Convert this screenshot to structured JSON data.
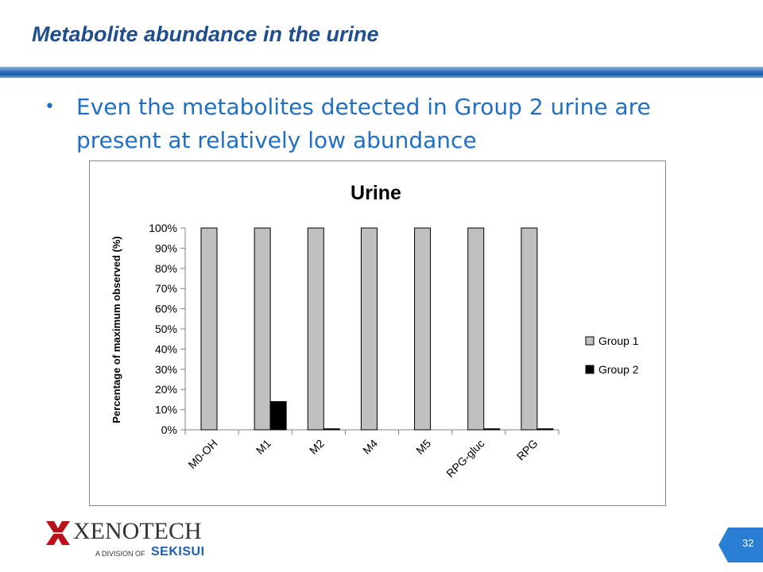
{
  "slide": {
    "title": "Metabolite abundance in the urine",
    "bullet": "Even the metabolites detected in Group 2 urine are present at relatively low abundance",
    "page_number": "32",
    "colors": {
      "title": "#1F4E8C",
      "bullet": "#1F6FC5",
      "bar_group1": "#C0C0C0",
      "bar_group2": "#000000"
    }
  },
  "logo": {
    "name": "XENOTECH",
    "division_text": "A DIVISION OF",
    "parent": "SEKISUI",
    "icon": "xenotech-x-mark"
  },
  "chart_data": {
    "type": "bar",
    "title": "Urine",
    "xlabel": "",
    "ylabel": "Percentage of maximum observed (%)",
    "categories": [
      "M0-OH",
      "M1",
      "M2",
      "M4",
      "M5",
      "RPG-gluc",
      "RPG"
    ],
    "series": [
      {
        "name": "Group 1",
        "values": [
          100,
          100,
          100,
          100,
          100,
          100,
          100
        ]
      },
      {
        "name": "Group 2",
        "values": [
          0,
          14,
          0.5,
          0,
          0,
          0.5,
          0.5
        ]
      }
    ],
    "ylim": [
      0,
      100
    ],
    "yticks": [
      "0%",
      "10%",
      "20%",
      "30%",
      "40%",
      "50%",
      "60%",
      "70%",
      "80%",
      "90%",
      "100%"
    ],
    "grid": false,
    "legend_position": "right"
  }
}
